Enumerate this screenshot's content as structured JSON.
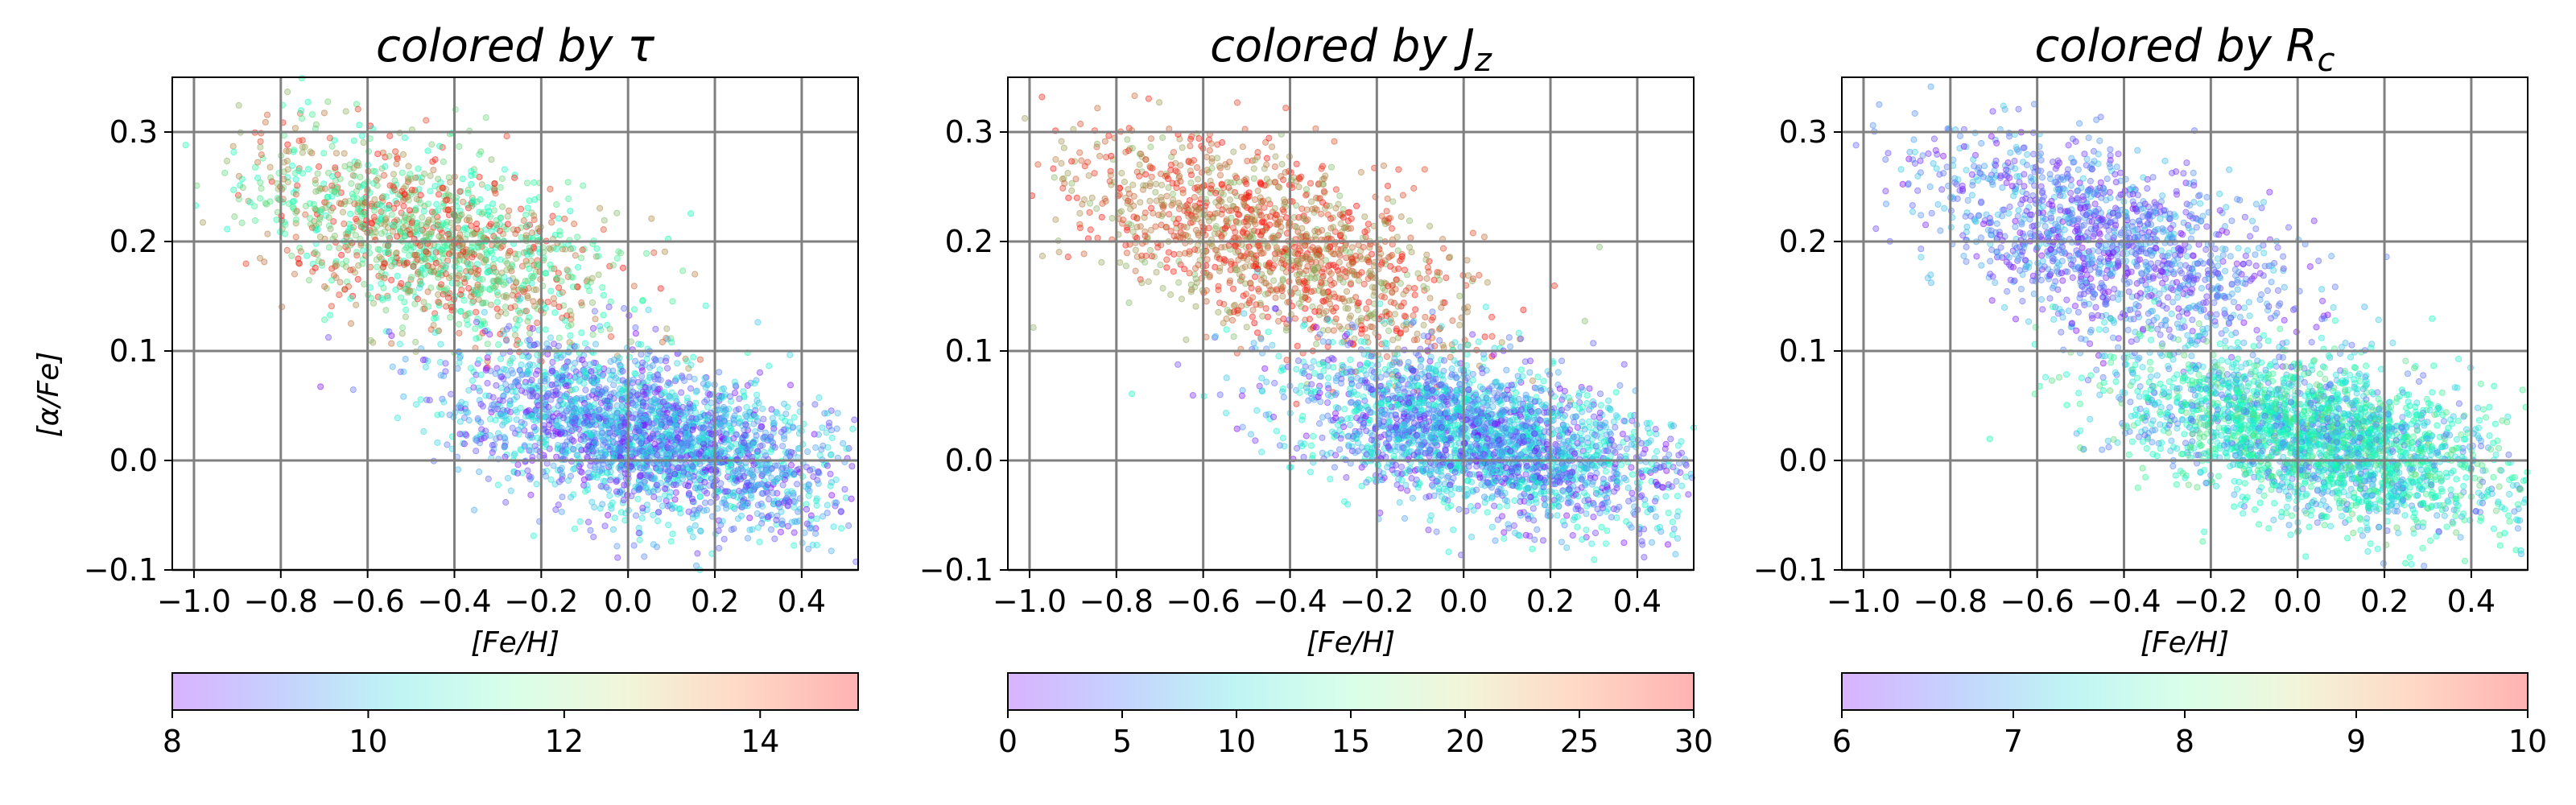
{
  "chart_data": [
    {
      "type": "scatter",
      "title": "colored by τ",
      "xlabel": "[Fe/H]",
      "ylabel": "[α/Fe]",
      "xlim": [
        -1.05,
        0.53
      ],
      "ylim": [
        -0.1,
        0.35
      ],
      "xticks": [
        "−1.0",
        "−0.8",
        "−0.6",
        "−0.4",
        "−0.2",
        "0.0",
        "0.2",
        "0.4"
      ],
      "yticks": [
        "−0.1",
        "0.0",
        "0.1",
        "0.2",
        "0.3"
      ],
      "grid": true,
      "colormap": "rainbow",
      "colorbar": {
        "orientation": "horizontal",
        "range": [
          8,
          15
        ],
        "ticks": [
          "8",
          "10",
          "12",
          "14"
        ]
      },
      "populations": [
        {
          "population": "high-alpha",
          "center": [
            -0.45,
            0.2
          ],
          "spread": [
            0.22,
            0.04
          ],
          "color_value_range": [
            11,
            15
          ],
          "approx_points": 1400
        },
        {
          "population": "low-alpha",
          "center": [
            0.05,
            0.02
          ],
          "spread": [
            0.22,
            0.035
          ],
          "color_value_range": [
            8,
            11
          ],
          "approx_points": 2600
        }
      ]
    },
    {
      "type": "scatter",
      "title": "colored by J",
      "title_sub": "z",
      "xlabel": "[Fe/H]",
      "xlim": [
        -1.05,
        0.53
      ],
      "ylim": [
        -0.1,
        0.35
      ],
      "xticks": [
        "−1.0",
        "−0.8",
        "−0.6",
        "−0.4",
        "−0.2",
        "0.0",
        "0.2",
        "0.4"
      ],
      "yticks": [
        "−0.1",
        "0.0",
        "0.1",
        "0.2",
        "0.3"
      ],
      "grid": true,
      "colormap": "rainbow",
      "colorbar": {
        "orientation": "horizontal",
        "range": [
          0,
          30
        ],
        "ticks": [
          "0",
          "5",
          "10",
          "15",
          "20",
          "25",
          "30"
        ]
      },
      "populations": [
        {
          "population": "high-alpha",
          "center": [
            -0.45,
            0.2
          ],
          "spread": [
            0.22,
            0.04
          ],
          "color_value_range": [
            22,
            30
          ],
          "approx_points": 1400
        },
        {
          "population": "low-alpha",
          "center": [
            0.05,
            0.02
          ],
          "spread": [
            0.22,
            0.035
          ],
          "color_value_range": [
            0,
            14
          ],
          "approx_points": 2600
        }
      ]
    },
    {
      "type": "scatter",
      "title": "colored by R",
      "title_sub": "c",
      "xlabel": "[Fe/H]",
      "xlim": [
        -1.05,
        0.53
      ],
      "ylim": [
        -0.1,
        0.35
      ],
      "xticks": [
        "−1.0",
        "−0.8",
        "−0.6",
        "−0.4",
        "−0.2",
        "0.0",
        "0.2",
        "0.4"
      ],
      "yticks": [
        "−0.1",
        "0.0",
        "0.1",
        "0.2",
        "0.3"
      ],
      "grid": true,
      "colormap": "rainbow",
      "colorbar": {
        "orientation": "horizontal",
        "range": [
          6,
          10
        ],
        "ticks": [
          "6",
          "7",
          "8",
          "9",
          "10"
        ]
      },
      "populations": [
        {
          "population": "high-alpha",
          "center": [
            -0.45,
            0.2
          ],
          "spread": [
            0.22,
            0.04
          ],
          "color_value_range": [
            6,
            7.2
          ],
          "approx_points": 1400
        },
        {
          "population": "low-alpha",
          "center": [
            0.05,
            0.02
          ],
          "spread": [
            0.22,
            0.035
          ],
          "color_value_range": [
            6.5,
            8.8
          ],
          "approx_points": 2600
        }
      ]
    }
  ]
}
